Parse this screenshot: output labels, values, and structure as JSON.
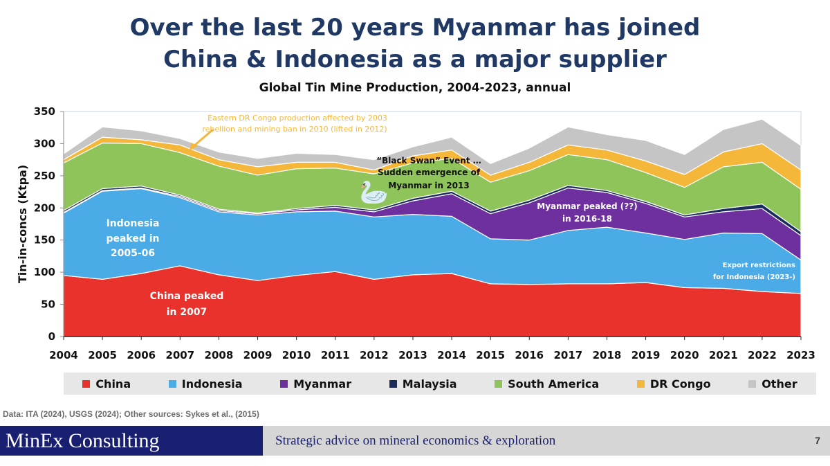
{
  "headline": {
    "line1": "Over the last 20 years Myanmar has joined",
    "line2": "China & Indonesia as a major supplier"
  },
  "footer": {
    "source": "Data: ITA (2024), USGS (2024); Other sources: Sykes et al., (2015)",
    "brand": "MinEx Consulting",
    "tagline": "Strategic advice on mineral economics & exploration",
    "page_number": "7"
  },
  "chart_data": {
    "type": "area",
    "stacked": true,
    "title": "Global Tin Mine Production, 2004-2023, annual",
    "ylabel": "Tin-in-concs (Ktpa)",
    "xlabel": "",
    "ylim": [
      0,
      350
    ],
    "yticks": [
      0,
      50,
      100,
      150,
      200,
      250,
      300,
      350
    ],
    "x": [
      "2004",
      "2005",
      "2006",
      "2007",
      "2008",
      "2009",
      "2010",
      "2011",
      "2012",
      "2013",
      "2014",
      "2015",
      "2016",
      "2017",
      "2018",
      "2019",
      "2020",
      "2021",
      "2022",
      "2023"
    ],
    "legend_position": "bottom",
    "series": [
      {
        "name": "China",
        "color": "#e8322b",
        "values": [
          95,
          89,
          98,
          110,
          96,
          87,
          95,
          101,
          89,
          96,
          98,
          82,
          81,
          82,
          82,
          84,
          76,
          75,
          70,
          67
        ]
      },
      {
        "name": "Indonesia",
        "color": "#4aabe6",
        "values": [
          97,
          137,
          132,
          106,
          98,
          102,
          99,
          94,
          97,
          94,
          89,
          70,
          69,
          83,
          88,
          77,
          75,
          86,
          90,
          52
        ]
      },
      {
        "name": "Myanmar",
        "color": "#6e2f9f",
        "values": [
          1,
          1,
          1,
          2,
          2,
          2,
          3,
          6,
          8,
          21,
          35,
          39,
          58,
          66,
          54,
          46,
          35,
          33,
          39,
          38
        ]
      },
      {
        "name": "Malaysia",
        "color": "#1a2b5e",
        "values": [
          3,
          3,
          3,
          2,
          2,
          1,
          2,
          3,
          3,
          4,
          4,
          4,
          4,
          4,
          3,
          3,
          3,
          5,
          7,
          6
        ]
      },
      {
        "name": "South America",
        "color": "#8fc45a",
        "values": [
          74,
          71,
          66,
          66,
          67,
          59,
          62,
          58,
          56,
          55,
          51,
          45,
          46,
          48,
          48,
          45,
          43,
          65,
          65,
          66
        ]
      },
      {
        "name": "DR Congo",
        "color": "#f4b73a",
        "values": [
          5,
          9,
          6,
          12,
          10,
          13,
          10,
          9,
          6,
          11,
          13,
          11,
          13,
          15,
          15,
          18,
          20,
          23,
          29,
          30
        ]
      },
      {
        "name": "Other",
        "color": "#c5c5c5",
        "values": [
          9,
          16,
          14,
          10,
          12,
          13,
          14,
          12,
          16,
          14,
          20,
          18,
          22,
          28,
          24,
          32,
          31,
          35,
          38,
          38
        ]
      }
    ],
    "annotations": [
      {
        "text": "Eastern DR Congo production affected by 2003",
        "color": "#f4b73a"
      },
      {
        "text": "rebellion and mining ban in 2010  (lifted in 2012)",
        "color": "#f4b73a"
      },
      {
        "text": "“Black Swan” Event …",
        "color": "#111111"
      },
      {
        "text": "Sudden emergence of",
        "color": "#111111"
      },
      {
        "text": "Myanmar in 2013",
        "color": "#111111"
      },
      {
        "text": "Indonesia",
        "color": "#ffffff"
      },
      {
        "text": "peaked in",
        "color": "#ffffff"
      },
      {
        "text": "2005-06",
        "color": "#ffffff"
      },
      {
        "text": "China peaked",
        "color": "#ffffff"
      },
      {
        "text": "in 2007",
        "color": "#ffffff"
      },
      {
        "text": "Myanmar peaked (??)",
        "color": "#ffffff"
      },
      {
        "text": "in 2016-18",
        "color": "#ffffff"
      },
      {
        "text": "Export restrictions",
        "color": "#ffffff"
      },
      {
        "text": "for Indonesia (2023-)",
        "color": "#ffffff"
      }
    ]
  }
}
